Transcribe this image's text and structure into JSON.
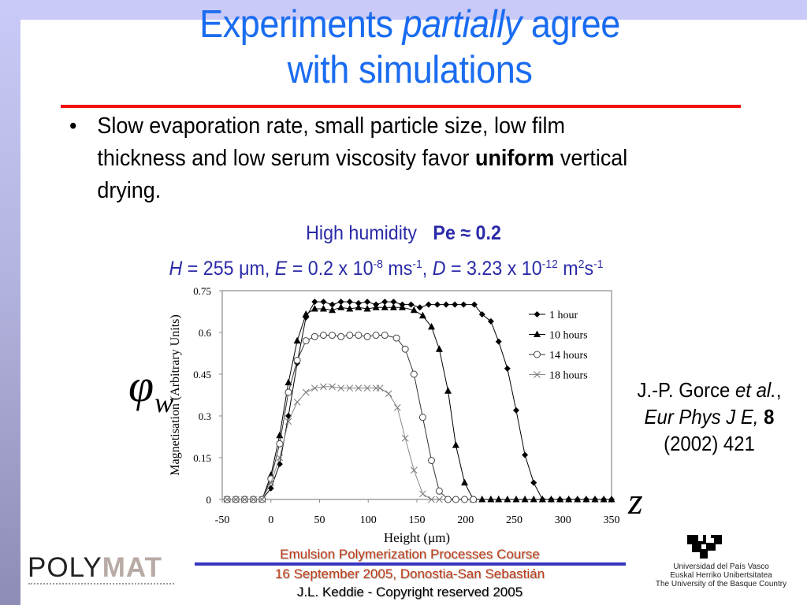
{
  "slide": {
    "title_part1": "Experiments ",
    "title_italic": "partially",
    "title_part2": " agree",
    "title_line2": "with simulations",
    "bullet": {
      "symbol": "•",
      "text_before": "Slow evaporation rate, small particle size, low film thickness and low serum viscosity favor ",
      "text_bold": "uniform",
      "text_after": " vertical drying."
    },
    "condition_label": "High humidity",
    "peclet": "Pe ≈ 0.2",
    "params": {
      "H_sym": "H",
      "H_val": " = 255 μm, ",
      "E_sym": "E",
      "E_val": " = 0.2 x 10",
      "E_exp": "-8",
      "E_unit": " ms",
      "E_unit_exp": "-1",
      "sep": ", ",
      "D_sym": "D",
      "D_val": " = 3.23 x 10",
      "D_exp": "-12",
      "D_unit1": " m",
      "D_unit1_exp": "2",
      "D_unit2": "s",
      "D_unit2_exp": "-1"
    },
    "phi_symbol": "φ",
    "phi_subscript": "w",
    "z_symbol": "z",
    "citation": {
      "authors": "J.-P. Gorce ",
      "et_al": "et al.",
      "comma": ", ",
      "journal": "Eur Phys J E,",
      "volume": "8",
      "rest": " (2002) 421"
    }
  },
  "footer": {
    "course": "Emulsion Polymerization Processes Course",
    "date_place": "16 September 2005, Donostia-San Sebastián",
    "copyright": "J.L. Keddie - Copyright reserved 2005",
    "polymat_poly": "POLY",
    "polymat_mat": "MAT",
    "university_lines": [
      "Universidad del País Vasco",
      "Euskal Herriko Unibertsitatea",
      "The University of the Basque Country"
    ]
  },
  "colors": {
    "title": "#1a6cf0",
    "rule": "#f01010",
    "condition": "#2a2aa8",
    "footer_text": "#c03a14",
    "footer_rule": "#3636c0",
    "frame": "#cacaf8"
  },
  "chart_data": {
    "type": "line",
    "title": "",
    "xlabel": "Height (μm)",
    "ylabel": "Magnetisation (Arbitrary Units)",
    "xlim": [
      -50,
      350
    ],
    "ylim": [
      0,
      0.75
    ],
    "xticks": [
      -50,
      0,
      50,
      100,
      150,
      200,
      250,
      300,
      350
    ],
    "yticks": [
      0,
      0.15,
      0.3,
      0.45,
      0.6,
      0.75
    ],
    "ytick_labels": [
      "0",
      "0.15",
      "0.3",
      "0.45",
      "0.6",
      "0.75"
    ],
    "grid": false,
    "legend_position": "upper right inside",
    "series": [
      {
        "name": "1 hour",
        "marker": "diamond-filled",
        "x": [
          -45,
          -36,
          -27,
          -18,
          -9,
          0,
          9,
          18,
          27,
          36,
          45,
          54,
          63,
          72,
          81,
          90,
          99,
          108,
          117,
          126,
          135,
          144,
          153,
          162,
          171,
          180,
          189,
          198,
          209,
          217,
          226,
          234,
          243,
          252,
          261,
          270,
          279,
          288,
          297,
          306,
          315,
          324,
          333,
          342,
          350
        ],
        "y": [
          0,
          0,
          0,
          0,
          0,
          0.04,
          0.127,
          0.3,
          0.49,
          0.654,
          0.71,
          0.71,
          0.7,
          0.71,
          0.71,
          0.705,
          0.71,
          0.7,
          0.71,
          0.71,
          0.7,
          0.7,
          0.69,
          0.7,
          0.7,
          0.7,
          0.7,
          0.7,
          0.7,
          0.665,
          0.64,
          0.567,
          0.47,
          0.32,
          0.16,
          0.06,
          0,
          0,
          0,
          0,
          0,
          0,
          0,
          0,
          0
        ]
      },
      {
        "name": "10 hours",
        "marker": "triangle-filled",
        "x": [
          -45,
          -36,
          -27,
          -18,
          -9,
          0,
          9,
          18,
          27,
          36,
          45,
          54,
          63,
          72,
          81,
          90,
          99,
          108,
          117,
          126,
          135,
          147,
          156,
          165,
          173,
          182,
          190,
          199,
          208,
          217,
          226,
          234,
          243,
          252,
          261,
          270,
          279,
          288,
          297,
          306,
          315,
          324,
          333,
          342,
          350
        ],
        "y": [
          0,
          0,
          0,
          0,
          0,
          0.087,
          0.23,
          0.42,
          0.57,
          0.665,
          0.685,
          0.685,
          0.68,
          0.69,
          0.685,
          0.69,
          0.685,
          0.69,
          0.69,
          0.69,
          0.69,
          0.68,
          0.66,
          0.62,
          0.54,
          0.39,
          0.195,
          0.06,
          0,
          0,
          0,
          0,
          0,
          0,
          0,
          0,
          0,
          0,
          0,
          0,
          0,
          0,
          0,
          0,
          0
        ]
      },
      {
        "name": "14 hours",
        "marker": "circle-open",
        "x": [
          -45,
          -36,
          -27,
          -18,
          -9,
          0,
          9,
          18,
          27,
          36,
          45,
          54,
          63,
          72,
          81,
          90,
          99,
          108,
          117,
          129,
          138,
          147,
          156,
          165,
          173,
          182,
          190,
          199,
          208
        ],
        "y": [
          0,
          0,
          0,
          0,
          0,
          0.074,
          0.2,
          0.385,
          0.5,
          0.57,
          0.585,
          0.59,
          0.59,
          0.585,
          0.59,
          0.59,
          0.585,
          0.59,
          0.59,
          0.58,
          0.54,
          0.45,
          0.295,
          0.14,
          0.03,
          0,
          0,
          0,
          0
        ]
      },
      {
        "name": "18 hours",
        "marker": "x",
        "x": [
          -45,
          -36,
          -27,
          -18,
          -9,
          0,
          9,
          18,
          27,
          36,
          45,
          54,
          63,
          72,
          81,
          90,
          99,
          108,
          112,
          121,
          130,
          138,
          147,
          156,
          165,
          173
        ],
        "y": [
          0,
          0,
          0,
          0,
          0,
          0.06,
          0.15,
          0.28,
          0.35,
          0.385,
          0.4,
          0.405,
          0.405,
          0.4,
          0.4,
          0.4,
          0.4,
          0.4,
          0.4,
          0.38,
          0.33,
          0.22,
          0.105,
          0.02,
          0,
          0
        ]
      }
    ]
  }
}
